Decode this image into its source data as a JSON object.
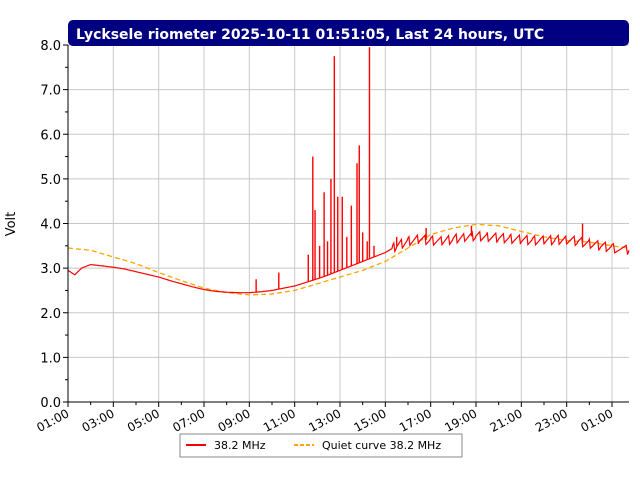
{
  "chart_data": {
    "type": "line",
    "title": "Lycksele riometer 2025-10-11 01:51:05, Last 24 hours, UTC",
    "xlabel": "",
    "ylabel": "Volt",
    "ylim": [
      0,
      8
    ],
    "y_ticks": [
      "0.0",
      "1.0",
      "2.0",
      "3.0",
      "4.0",
      "5.0",
      "6.0",
      "7.0",
      "8.0"
    ],
    "x_ticks": [
      "01:00",
      "03:00",
      "05:00",
      "07:00",
      "09:00",
      "11:00",
      "13:00",
      "15:00",
      "17:00",
      "19:00",
      "21:00",
      "23:00",
      "01:00"
    ],
    "x_range_hours": [
      1,
      25.75
    ],
    "grid": true,
    "legend_position": "bottom-center",
    "series": [
      {
        "name": "38.2 MHz",
        "color": "#ff0000",
        "x": [
          1.0,
          1.3,
          1.6,
          2.0,
          2.5,
          3.0,
          3.5,
          4.0,
          4.5,
          5.0,
          5.5,
          6.0,
          6.5,
          7.0,
          7.5,
          8.0,
          8.5,
          9.0,
          9.5,
          10.0,
          10.5,
          11.0,
          11.5,
          12.0,
          12.5,
          13.0,
          13.5,
          14.0,
          14.5,
          15.0,
          15.5,
          16.0,
          16.5,
          17.0,
          17.5,
          18.0,
          18.5,
          19.0,
          19.5,
          20.0,
          20.5,
          21.0,
          21.5,
          22.0,
          22.5,
          23.0,
          23.5,
          24.0,
          24.5,
          25.0,
          25.75
        ],
        "values": [
          2.95,
          2.85,
          3.0,
          3.08,
          3.05,
          3.02,
          2.98,
          2.92,
          2.86,
          2.8,
          2.72,
          2.65,
          2.58,
          2.52,
          2.48,
          2.46,
          2.45,
          2.45,
          2.47,
          2.5,
          2.55,
          2.6,
          2.68,
          2.76,
          2.85,
          2.95,
          3.05,
          3.15,
          3.25,
          3.35,
          3.5,
          3.6,
          3.65,
          3.62,
          3.6,
          3.65,
          3.7,
          3.72,
          3.7,
          3.68,
          3.66,
          3.64,
          3.62,
          3.62,
          3.63,
          3.64,
          3.6,
          3.55,
          3.5,
          3.45,
          3.4
        ],
        "spikes": [
          {
            "x": 9.3,
            "value": 2.75
          },
          {
            "x": 10.3,
            "value": 2.9
          },
          {
            "x": 11.6,
            "value": 3.3
          },
          {
            "x": 11.8,
            "value": 5.5
          },
          {
            "x": 11.9,
            "value": 4.3
          },
          {
            "x": 12.1,
            "value": 3.5
          },
          {
            "x": 12.3,
            "value": 4.7
          },
          {
            "x": 12.45,
            "value": 3.6
          },
          {
            "x": 12.6,
            "value": 5.0
          },
          {
            "x": 12.75,
            "value": 7.75
          },
          {
            "x": 12.9,
            "value": 4.6
          },
          {
            "x": 13.1,
            "value": 4.6
          },
          {
            "x": 13.3,
            "value": 3.7
          },
          {
            "x": 13.5,
            "value": 4.4
          },
          {
            "x": 13.75,
            "value": 5.35
          },
          {
            "x": 13.85,
            "value": 5.75
          },
          {
            "x": 14.0,
            "value": 3.8
          },
          {
            "x": 14.2,
            "value": 3.6
          },
          {
            "x": 14.3,
            "value": 7.95
          },
          {
            "x": 14.5,
            "value": 3.5
          },
          {
            "x": 15.5,
            "value": 3.7
          },
          {
            "x": 16.8,
            "value": 3.9
          },
          {
            "x": 18.8,
            "value": 3.95
          },
          {
            "x": 23.7,
            "value": 4.0
          }
        ]
      },
      {
        "name": "Quiet curve 38.2 MHz",
        "color": "#ffa500",
        "x": [
          1.0,
          2.0,
          3.0,
          4.0,
          5.0,
          6.0,
          7.0,
          8.0,
          9.0,
          10.0,
          11.0,
          12.0,
          13.0,
          14.0,
          15.0,
          16.0,
          17.0,
          18.0,
          19.0,
          20.0,
          21.0,
          22.0,
          23.0,
          24.0,
          25.0,
          25.75
        ],
        "values": [
          3.45,
          3.4,
          3.25,
          3.1,
          2.9,
          2.72,
          2.55,
          2.45,
          2.4,
          2.42,
          2.5,
          2.65,
          2.8,
          2.95,
          3.15,
          3.45,
          3.75,
          3.9,
          3.98,
          3.95,
          3.82,
          3.7,
          3.62,
          3.58,
          3.5,
          3.45
        ]
      }
    ]
  }
}
